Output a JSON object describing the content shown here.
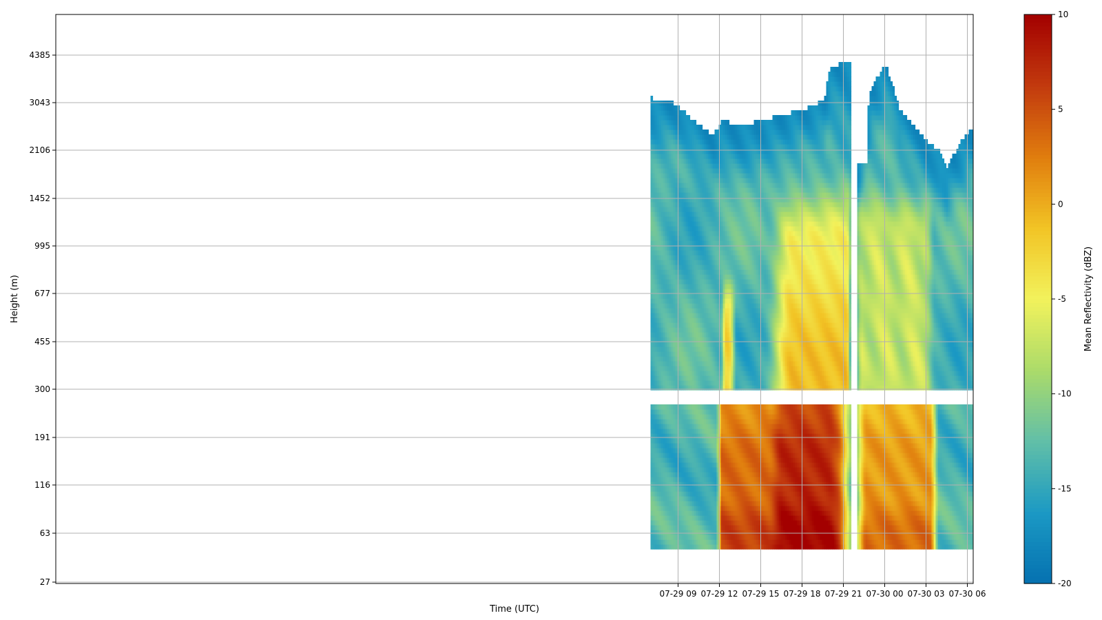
{
  "chart_data": {
    "type": "heatmap",
    "title": "",
    "xlabel": "Time (UTC)",
    "ylabel": "Height (m)",
    "x_ticks": [
      "07-29 09",
      "07-29 12",
      "07-29 15",
      "07-29 18",
      "07-29 21",
      "07-30 00",
      "07-30 03",
      "07-30 06"
    ],
    "y_ticks": [
      "27",
      "63",
      "116",
      "191",
      "300",
      "455",
      "677",
      "995",
      "1452",
      "2106",
      "3043",
      "4385"
    ],
    "x_range_hours": [
      6.8,
      30.5
    ],
    "grid": true,
    "colorbar": {
      "label": "Mean Reflectivity (dBZ)",
      "min": -20,
      "max": 10,
      "ticks": [
        -20,
        -15,
        -10,
        -5,
        0,
        5,
        10
      ],
      "colors": [
        "#0571b0",
        "#1b99c4",
        "#61bfa8",
        "#abdb6a",
        "#f2f25c",
        "#f2c425",
        "#e07d0e",
        "#c23a0e",
        "#a30000"
      ]
    },
    "field_summary": [
      {
        "time_range": [
          "07-29 07",
          "07-29 12"
        ],
        "height_range": [
          "27",
          "3043"
        ],
        "reflectivity": "-15 to -10 dBZ"
      },
      {
        "time_range": [
          "07-29 12",
          "07-29 16"
        ],
        "height_range": [
          "27",
          "191"
        ],
        "reflectivity": "0 to 10 dBZ"
      },
      {
        "time_range": [
          "07-29 16",
          "07-29 21"
        ],
        "height_range": [
          "27",
          "995"
        ],
        "reflectivity": "0 to 10 dBZ"
      },
      {
        "time_range": [
          "07-29 19",
          "07-29 21"
        ],
        "height_range": [
          "2106",
          "4385"
        ],
        "reflectivity": "about -17 dBZ"
      },
      {
        "time_range": [
          "07-29 22",
          "07-30 03"
        ],
        "height_range": [
          "27",
          "191"
        ],
        "reflectivity": "0 to 8 dBZ"
      },
      {
        "time_range": [
          "07-29 22",
          "07-30 03"
        ],
        "height_range": [
          "300",
          "1452"
        ],
        "reflectivity": "-8 to -5 dBZ"
      },
      {
        "time_range": [
          "07-29 23",
          "07-30 00"
        ],
        "height_range": [
          "2106",
          "4385"
        ],
        "reflectivity": "about -17 dBZ"
      },
      {
        "time_range": [
          "07-30 03",
          "07-30 06"
        ],
        "height_range": [
          "27",
          "2106"
        ],
        "reflectivity": "-15 to -10 dBZ"
      }
    ]
  }
}
